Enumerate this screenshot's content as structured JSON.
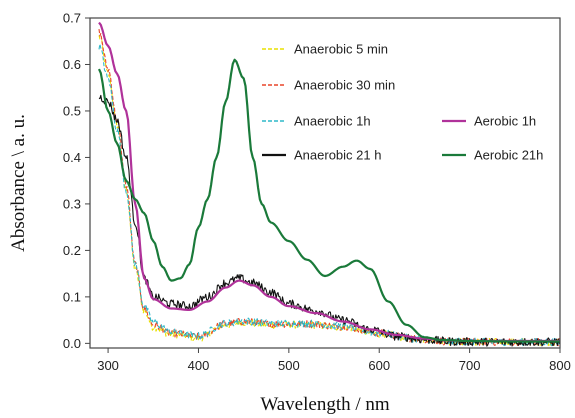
{
  "chart_data": {
    "type": "line",
    "title": "",
    "xlabel": "Wavelength / nm",
    "ylabel": "Absorbance \\ a. u.",
    "xlim": [
      280,
      800
    ],
    "ylim": [
      -0.01,
      0.7
    ],
    "xticks": [
      300,
      400,
      500,
      600,
      700,
      800
    ],
    "yticks": [
      0.0,
      0.1,
      0.2,
      0.3,
      0.4,
      0.5,
      0.6,
      0.7
    ],
    "grid": false,
    "legend_placement": "top-right",
    "series": [
      {
        "name": "Anaerobic 5 min",
        "color": "#e8e000",
        "style": "dashed",
        "noise": 0.008,
        "x": [
          290,
          300,
          310,
          320,
          330,
          340,
          350,
          370,
          400,
          430,
          450,
          480,
          520,
          560,
          600,
          640,
          680,
          720,
          800
        ],
        "y": [
          0.66,
          0.58,
          0.47,
          0.33,
          0.16,
          0.07,
          0.035,
          0.02,
          0.012,
          0.04,
          0.045,
          0.04,
          0.04,
          0.035,
          0.02,
          0.01,
          0.004,
          0.003,
          0.003
        ]
      },
      {
        "name": "Anaerobic 30 min",
        "color": "#e8452a",
        "style": "dashed",
        "noise": 0.008,
        "x": [
          290,
          300,
          310,
          320,
          330,
          340,
          350,
          370,
          400,
          430,
          450,
          480,
          520,
          560,
          600,
          640,
          680,
          720,
          800
        ],
        "y": [
          0.67,
          0.59,
          0.48,
          0.34,
          0.17,
          0.075,
          0.04,
          0.022,
          0.014,
          0.042,
          0.047,
          0.042,
          0.042,
          0.036,
          0.022,
          0.01,
          0.004,
          0.003,
          0.003
        ]
      },
      {
        "name": "Anaerobic 1h",
        "color": "#2fb8c8",
        "style": "dashed",
        "noise": 0.008,
        "x": [
          290,
          300,
          310,
          320,
          330,
          340,
          350,
          370,
          400,
          430,
          450,
          480,
          520,
          560,
          600,
          640,
          680,
          720,
          800
        ],
        "y": [
          0.64,
          0.57,
          0.46,
          0.33,
          0.17,
          0.08,
          0.045,
          0.025,
          0.016,
          0.043,
          0.048,
          0.043,
          0.043,
          0.037,
          0.022,
          0.01,
          0.004,
          0.003,
          0.003
        ]
      },
      {
        "name": "Anaerobic 21 h",
        "color": "#111111",
        "style": "solid",
        "noise": 0.009,
        "x": [
          290,
          300,
          310,
          320,
          330,
          340,
          350,
          370,
          390,
          410,
          430,
          445,
          460,
          480,
          500,
          530,
          560,
          590,
          620,
          650,
          680,
          720,
          800
        ],
        "y": [
          0.53,
          0.52,
          0.48,
          0.4,
          0.26,
          0.14,
          0.1,
          0.085,
          0.08,
          0.1,
          0.13,
          0.14,
          0.13,
          0.11,
          0.085,
          0.07,
          0.05,
          0.03,
          0.015,
          0.008,
          0.004,
          0.003,
          0.003
        ]
      },
      {
        "name": "Aerobic 1h",
        "color": "#b0329a",
        "style": "solid",
        "noise": 0,
        "x": [
          290,
          300,
          310,
          320,
          330,
          340,
          350,
          370,
          390,
          410,
          430,
          445,
          460,
          480,
          500,
          530,
          560,
          590,
          620,
          650,
          680,
          720,
          800
        ],
        "y": [
          0.69,
          0.64,
          0.58,
          0.5,
          0.3,
          0.14,
          0.095,
          0.075,
          0.072,
          0.09,
          0.12,
          0.135,
          0.125,
          0.1,
          0.08,
          0.065,
          0.047,
          0.03,
          0.018,
          0.01,
          0.006,
          0.005,
          0.005
        ]
      },
      {
        "name": "Aerobic 21h",
        "color": "#1a7a3a",
        "style": "solid",
        "noise": 0,
        "x": [
          290,
          300,
          310,
          320,
          330,
          340,
          350,
          360,
          370,
          380,
          390,
          400,
          410,
          420,
          430,
          440,
          450,
          460,
          470,
          480,
          500,
          520,
          540,
          560,
          575,
          590,
          610,
          630,
          650,
          670,
          700,
          750,
          800
        ],
        "y": [
          0.59,
          0.5,
          0.43,
          0.35,
          0.31,
          0.28,
          0.22,
          0.165,
          0.135,
          0.14,
          0.17,
          0.25,
          0.31,
          0.4,
          0.52,
          0.61,
          0.57,
          0.4,
          0.3,
          0.26,
          0.22,
          0.18,
          0.145,
          0.165,
          0.178,
          0.16,
          0.09,
          0.04,
          0.013,
          0.007,
          0.005,
          0.004,
          0.004
        ]
      }
    ]
  }
}
